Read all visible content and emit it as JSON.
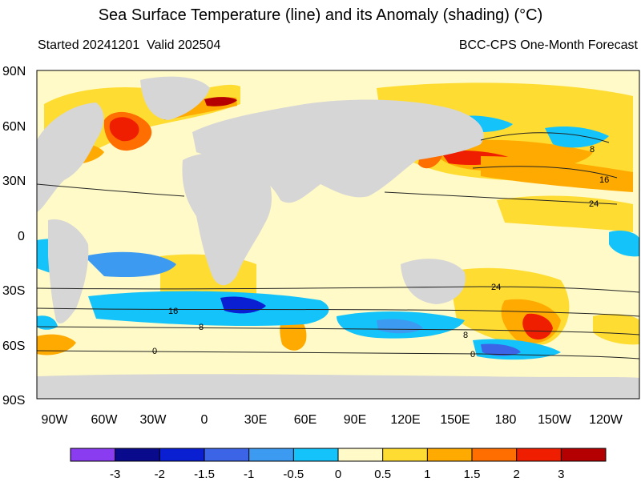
{
  "header": {
    "title": "Sea Surface Temperature (line) and its Anomaly (shading) (°C)",
    "started": "Started 20241201",
    "valid": "Valid 202504",
    "product": "BCC-CPS One-Month Forecast"
  },
  "map": {
    "lat_labels": [
      "90N",
      "60N",
      "30N",
      "0",
      "30S",
      "60S",
      "90S"
    ],
    "lon_labels": [
      "90W",
      "60W",
      "30W",
      "0",
      "30E",
      "60E",
      "90E",
      "120E",
      "150E",
      "180",
      "150W",
      "120W"
    ],
    "contour_labels": [
      "8",
      "16",
      "24",
      "24",
      "16",
      "8",
      "8",
      "0",
      "0"
    ],
    "colors": {
      "land": "#d6d6d6",
      "ocean_base": "#fffac8"
    }
  },
  "colorbar": {
    "tick_labels": [
      "-3",
      "-2",
      "-1.5",
      "-1",
      "-0.5",
      "0",
      "0.5",
      "1",
      "1.5",
      "2",
      "3"
    ],
    "colors": [
      "#8a3cf0",
      "#0a0a8c",
      "#0a1ed2",
      "#3c64e6",
      "#3c9bf0",
      "#14c3fa",
      "#fffac8",
      "#ffdc32",
      "#ffaa00",
      "#ff6e00",
      "#f01e00",
      "#b40000"
    ]
  }
}
